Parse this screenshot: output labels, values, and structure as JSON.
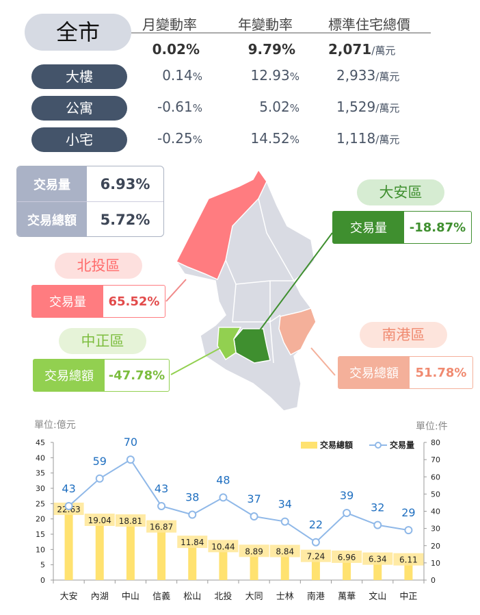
{
  "summary": {
    "city_label": "全市",
    "headers": [
      "月變動率",
      "年變動率",
      "標準住宅總價"
    ],
    "unit": "/萬元",
    "city": {
      "monthly": "0.02%",
      "yearly": "9.79%",
      "price": "2,071"
    },
    "rows": [
      {
        "label": "大樓",
        "monthly": "0.14",
        "yearly": "12.93",
        "price": "2,933"
      },
      {
        "label": "公寓",
        "monthly": "-0.61",
        "yearly": "5.02",
        "price": "1,529"
      },
      {
        "label": "小宅",
        "monthly": "-0.25",
        "yearly": "14.52",
        "price": "1,118"
      }
    ],
    "pct": "%"
  },
  "city_totals": [
    {
      "label": "交易量",
      "value": "6.93%"
    },
    {
      "label": "交易總額",
      "value": "5.72%"
    }
  ],
  "districts": {
    "beitou": {
      "name": "北投區",
      "label": "交易量",
      "value": "65.52%",
      "color": "#ff7c80"
    },
    "daan": {
      "name": "大安區",
      "label": "交易量",
      "value": "-18.87%",
      "color": "#3f8f2f"
    },
    "zhongzheng": {
      "name": "中正區",
      "label": "交易總額",
      "value": "-47.78%",
      "color": "#92d050"
    },
    "nangang": {
      "name": "南港區",
      "label": "交易總額",
      "value": "51.78%",
      "color": "#f4b09a"
    }
  },
  "chart_data": {
    "type": "bar+line",
    "categories": [
      "大安",
      "內湖",
      "中山",
      "信義",
      "松山",
      "北投",
      "大同",
      "士林",
      "南港",
      "萬華",
      "文山",
      "中正"
    ],
    "series": [
      {
        "name": "交易總額",
        "type": "bar",
        "axis": "left",
        "values": [
          22.63,
          19.04,
          18.81,
          16.87,
          11.84,
          10.44,
          8.89,
          8.84,
          7.24,
          6.96,
          6.34,
          6.11
        ],
        "color": "#ffe270"
      },
      {
        "name": "交易量",
        "type": "line",
        "axis": "right",
        "values": [
          43,
          59,
          70,
          43,
          38,
          48,
          37,
          34,
          22,
          39,
          32,
          29
        ],
        "color": "#8fb8e8"
      }
    ],
    "ylabel_left": "單位:億元",
    "ylabel_right": "單位:件",
    "ylim_left": [
      0,
      45
    ],
    "yticks_left": [
      0,
      5,
      10,
      15,
      20,
      25,
      30,
      35,
      40,
      45
    ],
    "ylim_right": [
      0,
      80
    ],
    "yticks_right": [
      0,
      10,
      20,
      30,
      40,
      50,
      60,
      70,
      80
    ],
    "legend": "top-right",
    "grid": false
  }
}
